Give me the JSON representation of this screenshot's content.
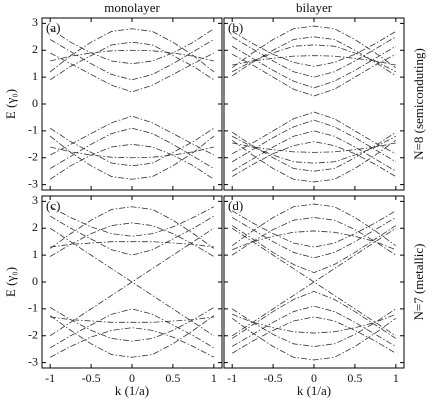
{
  "chart_data": [
    {
      "type": "line",
      "title": "monolayer",
      "annotation": "(a)",
      "ylabel": "E (γ₀)",
      "show_xticklabels": false,
      "show_yticklabels": true,
      "color": "#333",
      "line_style": "dashdot",
      "x": [
        -1,
        -0.75,
        -0.5,
        -0.25,
        0,
        0.25,
        0.5,
        0.75,
        1
      ],
      "xlim": [
        -1.1,
        1.1
      ],
      "ylim": [
        -3.2,
        3.2
      ],
      "xticks": [
        -1,
        -0.5,
        0,
        0.5,
        1
      ],
      "yticks": [
        -3,
        -2,
        -1,
        0,
        1,
        2,
        3
      ],
      "series": [
        {
          "values": [
            1.9,
            1.5,
            1.1,
            0.7,
            0.45,
            0.7,
            1.1,
            1.5,
            1.9
          ]
        },
        {
          "values": [
            2.4,
            1.95,
            1.5,
            1.1,
            0.9,
            1.1,
            1.5,
            1.95,
            2.4
          ]
        },
        {
          "values": [
            2.8,
            2.3,
            1.9,
            1.6,
            1.5,
            1.6,
            1.9,
            2.3,
            2.8
          ]
        },
        {
          "values": [
            1.2,
            1.8,
            2.3,
            2.7,
            2.8,
            2.7,
            2.3,
            1.8,
            1.2
          ]
        },
        {
          "values": [
            0.9,
            1.4,
            1.8,
            2.2,
            2.3,
            2.2,
            1.8,
            1.4,
            0.9
          ]
        },
        {
          "values": [
            1.6,
            1.78,
            1.9,
            1.98,
            2.0,
            1.98,
            1.9,
            1.78,
            1.6
          ]
        },
        {
          "values": [
            -1.9,
            -1.5,
            -1.1,
            -0.7,
            -0.45,
            -0.7,
            -1.1,
            -1.5,
            -1.9
          ]
        },
        {
          "values": [
            -2.4,
            -1.95,
            -1.5,
            -1.1,
            -0.9,
            -1.1,
            -1.5,
            -1.95,
            -2.4
          ]
        },
        {
          "values": [
            -2.8,
            -2.3,
            -1.9,
            -1.6,
            -1.5,
            -1.6,
            -1.9,
            -2.3,
            -2.8
          ]
        },
        {
          "values": [
            -1.2,
            -1.8,
            -2.3,
            -2.7,
            -2.8,
            -2.7,
            -2.3,
            -1.8,
            -1.2
          ]
        },
        {
          "values": [
            -0.9,
            -1.4,
            -1.8,
            -2.2,
            -2.3,
            -2.2,
            -1.8,
            -1.4,
            -0.9
          ]
        },
        {
          "values": [
            -1.6,
            -1.78,
            -1.9,
            -1.98,
            -2.0,
            -1.98,
            -1.9,
            -1.78,
            -1.6
          ]
        }
      ]
    },
    {
      "type": "line",
      "title": "bilayer",
      "annotation": "(b)",
      "side_label": "N=8 (semiconduting)",
      "show_xticklabels": false,
      "show_yticklabels": false,
      "color": "#333",
      "line_style": "dashdot",
      "x": [
        -1,
        -0.75,
        -0.5,
        -0.25,
        0,
        0.25,
        0.5,
        0.75,
        1
      ],
      "xlim": [
        -1.1,
        1.1
      ],
      "ylim": [
        -3.2,
        3.2
      ],
      "xticks": [
        -1,
        -0.5,
        0,
        0.5,
        1
      ],
      "yticks": [
        -3,
        -2,
        -1,
        0,
        1,
        2,
        3
      ],
      "series": [
        {
          "values": [
            1.85,
            1.45,
            1.0,
            0.55,
            0.3,
            0.55,
            1.0,
            1.45,
            1.85
          ]
        },
        {
          "values": [
            2.15,
            1.7,
            1.25,
            0.85,
            0.6,
            0.85,
            1.25,
            1.7,
            2.15
          ]
        },
        {
          "values": [
            2.5,
            2.05,
            1.6,
            1.2,
            1.0,
            1.2,
            1.6,
            2.05,
            2.5
          ]
        },
        {
          "values": [
            2.7,
            2.25,
            1.85,
            1.55,
            1.4,
            1.55,
            1.85,
            2.25,
            2.7
          ]
        },
        {
          "values": [
            1.35,
            1.9,
            2.4,
            2.8,
            2.9,
            2.8,
            2.4,
            1.9,
            1.35
          ]
        },
        {
          "values": [
            1.05,
            1.55,
            2.0,
            2.4,
            2.5,
            2.4,
            2.0,
            1.55,
            1.05
          ]
        },
        {
          "values": [
            1.2,
            1.6,
            1.9,
            2.15,
            2.2,
            2.15,
            1.9,
            1.6,
            1.2
          ]
        },
        {
          "values": [
            1.45,
            1.6,
            1.7,
            1.78,
            1.8,
            1.78,
            1.7,
            1.6,
            1.45
          ]
        },
        {
          "values": [
            -1.85,
            -1.45,
            -1.0,
            -0.55,
            -0.3,
            -0.55,
            -1.0,
            -1.45,
            -1.85
          ]
        },
        {
          "values": [
            -2.15,
            -1.7,
            -1.25,
            -0.85,
            -0.6,
            -0.85,
            -1.25,
            -1.7,
            -2.15
          ]
        },
        {
          "values": [
            -2.5,
            -2.05,
            -1.6,
            -1.2,
            -1.0,
            -1.2,
            -1.6,
            -2.05,
            -2.5
          ]
        },
        {
          "values": [
            -2.7,
            -2.25,
            -1.85,
            -1.55,
            -1.4,
            -1.55,
            -1.85,
            -2.25,
            -2.7
          ]
        },
        {
          "values": [
            -1.35,
            -1.9,
            -2.4,
            -2.8,
            -2.9,
            -2.8,
            -2.4,
            -1.9,
            -1.35
          ]
        },
        {
          "values": [
            -1.05,
            -1.55,
            -2.0,
            -2.4,
            -2.5,
            -2.4,
            -2.0,
            -1.55,
            -1.05
          ]
        },
        {
          "values": [
            -1.2,
            -1.6,
            -1.9,
            -2.15,
            -2.2,
            -2.15,
            -1.9,
            -1.6,
            -1.2
          ]
        },
        {
          "values": [
            -1.45,
            -1.6,
            -1.7,
            -1.78,
            -1.8,
            -1.78,
            -1.7,
            -1.6,
            -1.45
          ]
        }
      ]
    },
    {
      "type": "line",
      "annotation": "(c)",
      "ylabel": "E (γ₀)",
      "xlabel": "k (1/a)",
      "show_xticklabels": true,
      "show_yticklabels": true,
      "color": "#333",
      "line_style": "dashdot",
      "x": [
        -1,
        -0.75,
        -0.5,
        -0.25,
        0,
        0.25,
        0.5,
        0.75,
        1
      ],
      "xlim": [
        -1.1,
        1.1
      ],
      "ylim": [
        -3.2,
        3.2
      ],
      "xticks": [
        -1,
        -0.5,
        0,
        0.5,
        1
      ],
      "yticks": [
        -3,
        -2,
        -1,
        0,
        1,
        2,
        3
      ],
      "series": [
        {
          "values": [
            -2,
            -1.5,
            -1,
            -0.5,
            0,
            0.5,
            1,
            1.5,
            2
          ]
        },
        {
          "values": [
            2,
            1.5,
            1,
            0.5,
            0,
            -0.5,
            -1,
            -1.5,
            -2
          ]
        },
        {
          "values": [
            2.45,
            2.0,
            1.6,
            1.2,
            1.0,
            1.2,
            1.6,
            2.0,
            2.45
          ]
        },
        {
          "values": [
            2.8,
            2.4,
            2.05,
            1.8,
            1.7,
            1.8,
            2.05,
            2.4,
            2.8
          ]
        },
        {
          "values": [
            1.25,
            1.8,
            2.3,
            2.7,
            2.8,
            2.7,
            2.3,
            1.8,
            1.25
          ]
        },
        {
          "values": [
            0.95,
            1.4,
            1.8,
            2.1,
            2.2,
            2.1,
            1.8,
            1.4,
            0.95
          ]
        },
        {
          "values": [
            1.3,
            1.4,
            1.45,
            1.5,
            1.5,
            1.5,
            1.45,
            1.4,
            1.3
          ]
        },
        {
          "values": [
            -2.45,
            -2.0,
            -1.6,
            -1.2,
            -1.0,
            -1.2,
            -1.6,
            -2.0,
            -2.45
          ]
        },
        {
          "values": [
            -2.8,
            -2.4,
            -2.05,
            -1.8,
            -1.7,
            -1.8,
            -2.05,
            -2.4,
            -2.8
          ]
        },
        {
          "values": [
            -1.25,
            -1.8,
            -2.3,
            -2.7,
            -2.8,
            -2.7,
            -2.3,
            -1.8,
            -1.25
          ]
        },
        {
          "values": [
            -0.95,
            -1.4,
            -1.8,
            -2.1,
            -2.2,
            -2.1,
            -1.8,
            -1.4,
            -0.95
          ]
        },
        {
          "values": [
            -1.3,
            -1.4,
            -1.45,
            -1.5,
            -1.5,
            -1.5,
            -1.45,
            -1.4,
            -1.3
          ]
        }
      ]
    },
    {
      "type": "line",
      "annotation": "(d)",
      "side_label": "N=7 (metallic)",
      "xlabel": "k (1/a)",
      "show_xticklabels": true,
      "show_yticklabels": false,
      "color": "#333",
      "line_style": "dashdot",
      "x": [
        -1,
        -0.75,
        -0.5,
        -0.25,
        0,
        0.25,
        0.5,
        0.75,
        1
      ],
      "xlim": [
        -1.1,
        1.1
      ],
      "ylim": [
        -3.2,
        3.2
      ],
      "xticks": [
        -1,
        -0.5,
        0,
        0.5,
        1
      ],
      "yticks": [
        -3,
        -2,
        -1,
        0,
        1,
        2,
        3
      ],
      "series": [
        {
          "values": [
            -2,
            -1.5,
            -1,
            -0.5,
            0,
            0.5,
            1,
            1.5,
            2
          ]
        },
        {
          "values": [
            2,
            1.5,
            1,
            0.5,
            0,
            -0.5,
            -1,
            -1.5,
            -2
          ]
        },
        {
          "values": [
            2.1,
            1.6,
            1.1,
            0.65,
            0.35,
            0.65,
            1.1,
            1.6,
            2.1
          ]
        },
        {
          "values": [
            2.4,
            1.95,
            1.5,
            1.1,
            0.9,
            1.1,
            1.5,
            1.95,
            2.4
          ]
        },
        {
          "values": [
            2.65,
            2.2,
            1.8,
            1.45,
            1.3,
            1.45,
            1.8,
            2.2,
            2.65
          ]
        },
        {
          "values": [
            1.35,
            1.9,
            2.4,
            2.8,
            2.9,
            2.8,
            2.4,
            1.9,
            1.35
          ]
        },
        {
          "values": [
            1.0,
            1.5,
            1.95,
            2.3,
            2.4,
            2.3,
            1.95,
            1.5,
            1.0
          ]
        },
        {
          "values": [
            1.2,
            1.5,
            1.7,
            1.85,
            1.9,
            1.85,
            1.7,
            1.5,
            1.2
          ]
        },
        {
          "values": [
            -2.1,
            -1.6,
            -1.1,
            -0.65,
            -0.35,
            -0.65,
            -1.1,
            -1.6,
            -2.1
          ]
        },
        {
          "values": [
            -2.4,
            -1.95,
            -1.5,
            -1.1,
            -0.9,
            -1.1,
            -1.5,
            -1.95,
            -2.4
          ]
        },
        {
          "values": [
            -2.65,
            -2.2,
            -1.8,
            -1.45,
            -1.3,
            -1.45,
            -1.8,
            -2.2,
            -2.65
          ]
        },
        {
          "values": [
            -1.35,
            -1.9,
            -2.4,
            -2.8,
            -2.9,
            -2.8,
            -2.4,
            -1.9,
            -1.35
          ]
        },
        {
          "values": [
            -1.0,
            -1.5,
            -1.95,
            -2.3,
            -2.4,
            -2.3,
            -1.95,
            -1.5,
            -1.0
          ]
        },
        {
          "values": [
            -1.2,
            -1.5,
            -1.7,
            -1.85,
            -1.9,
            -1.85,
            -1.7,
            -1.5,
            -1.2
          ]
        }
      ]
    }
  ]
}
